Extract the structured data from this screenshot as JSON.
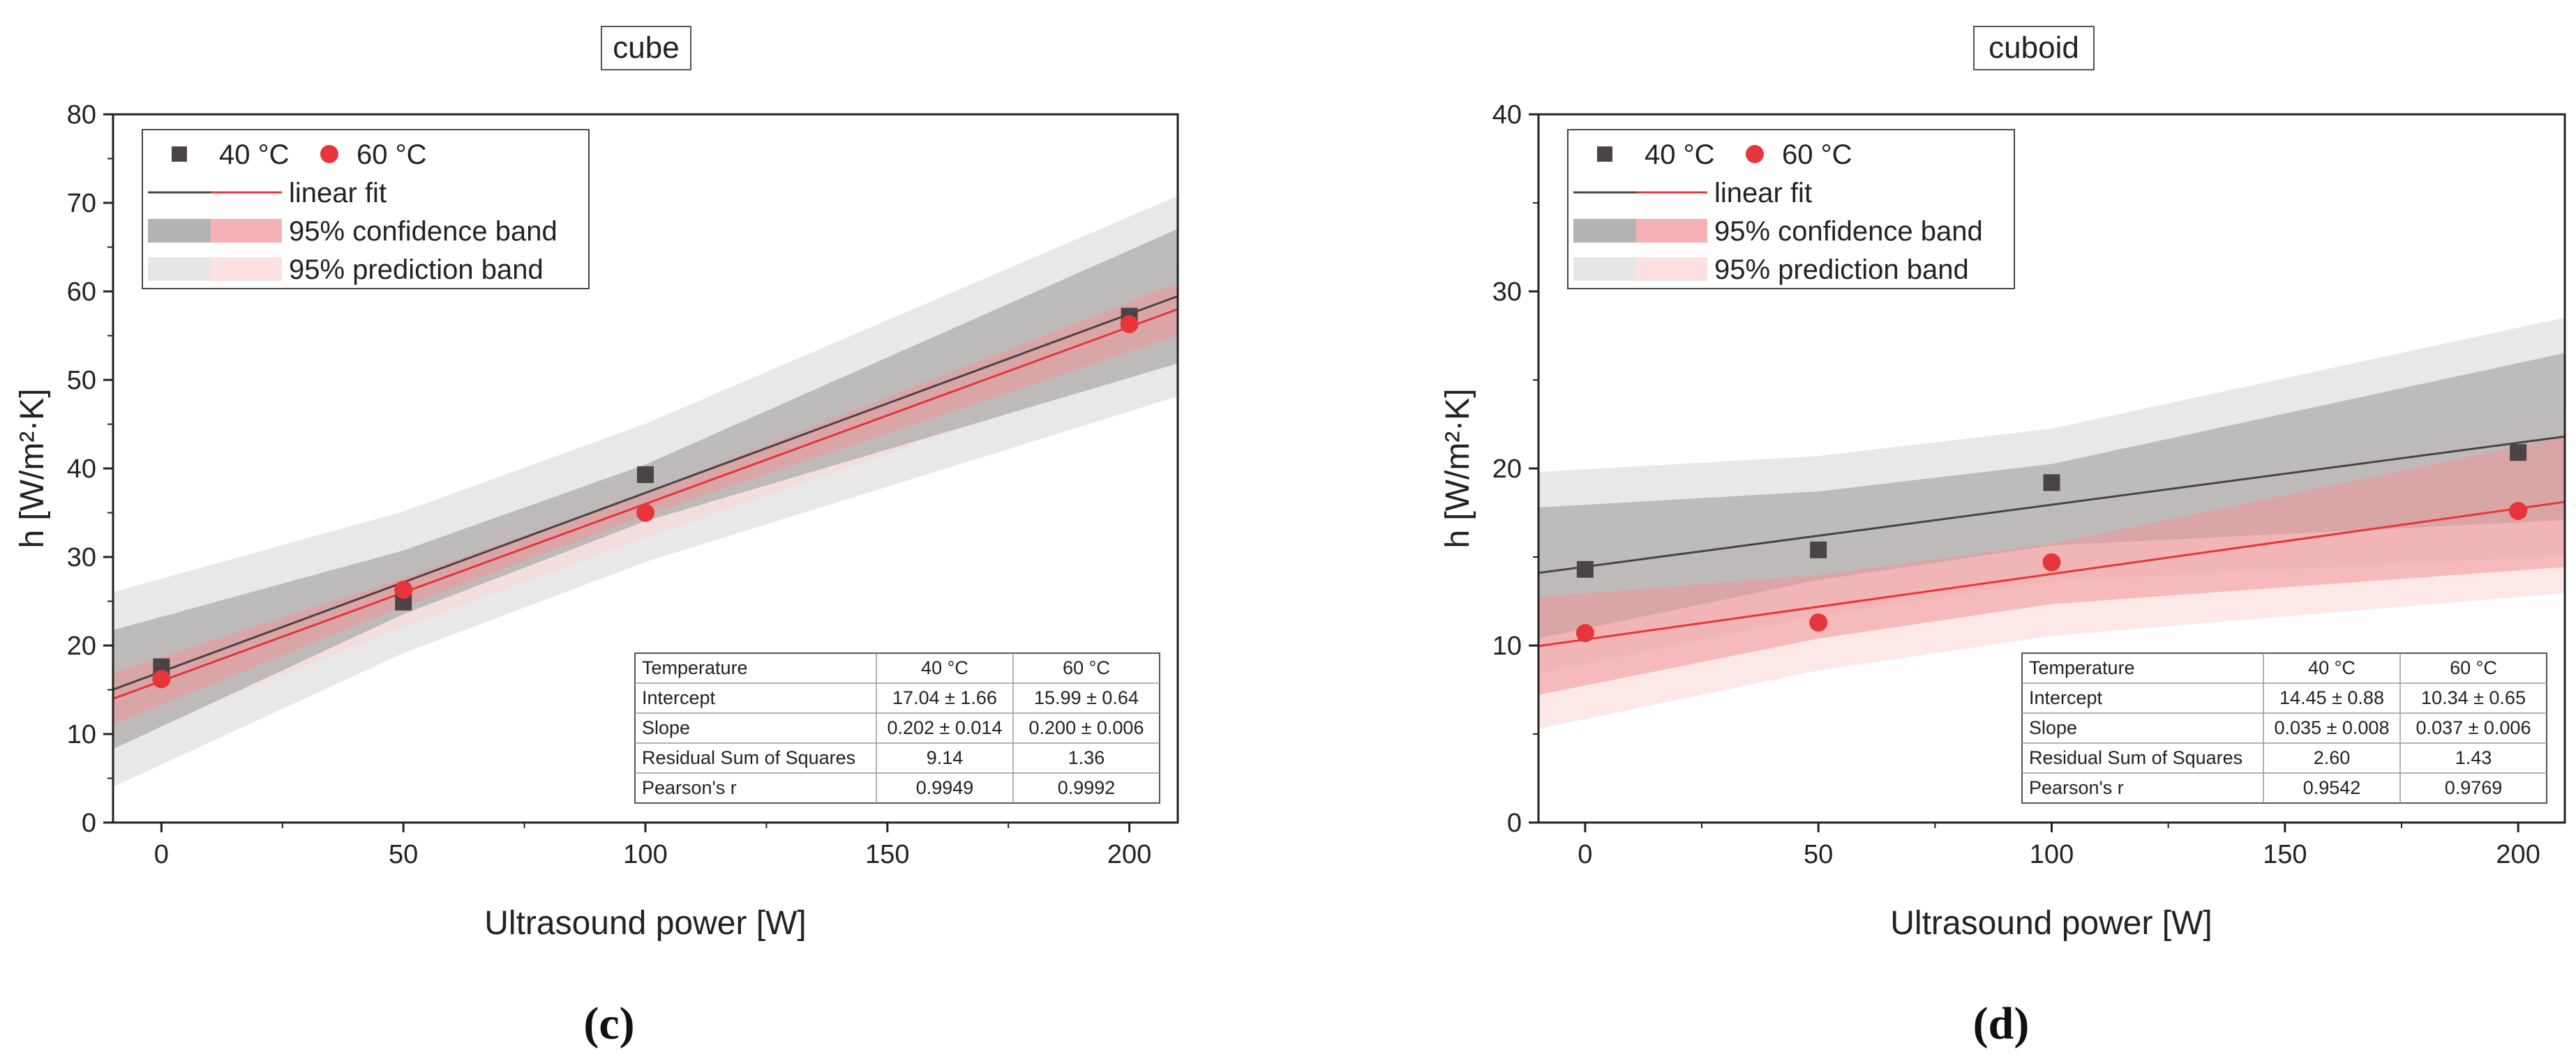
{
  "chart_data": [
    {
      "type": "scatter",
      "panel_letter": "(c)",
      "title": "cube",
      "xlabel": "Ultrasound power [W]",
      "ylabel": "h [W/m²·K]",
      "xlim": [
        -10,
        210
      ],
      "ylim": [
        0,
        80
      ],
      "xticks": [
        0,
        50,
        100,
        150,
        200
      ],
      "yticks": [
        0,
        10,
        20,
        30,
        40,
        50,
        60,
        70,
        80
      ],
      "legend": {
        "position": "top-left",
        "series_40": "40 °C",
        "series_60": "60 °C",
        "fit": "linear fit",
        "confidence": "95% confidence band",
        "prediction": "95% prediction band"
      },
      "series": [
        {
          "name": "40 °C",
          "color": "#4a4446",
          "marker": "square",
          "x": [
            0,
            50,
            100,
            200
          ],
          "y": [
            17.6,
            24.9,
            39.3,
            57.2
          ],
          "intercept": 17.04,
          "slope": 0.202,
          "conf_half": [
            6.2,
            3.6,
            3.2,
            7.2
          ],
          "pred_half": [
            10.5,
            8.0,
            7.8,
            11.0
          ]
        },
        {
          "name": "60 °C",
          "color": "#e8353b",
          "marker": "circle",
          "x": [
            0,
            50,
            100,
            200
          ],
          "y": [
            16.2,
            26.3,
            35.0,
            56.3
          ],
          "intercept": 15.99,
          "slope": 0.2,
          "conf_half": [
            2.7,
            1.6,
            1.3,
            2.8
          ],
          "pred_half": [
            4.8,
            3.9,
            3.8,
            4.9
          ]
        }
      ],
      "stats_table": {
        "header": [
          "Temperature",
          "40 °C",
          "60 °C"
        ],
        "rows": [
          [
            "Intercept",
            "17.04 ± 1.66",
            "15.99 ± 0.64"
          ],
          [
            "Slope",
            "0.202 ± 0.014",
            "0.200 ± 0.006"
          ],
          [
            "Residual Sum of Squares",
            "9.14",
            "1.36"
          ],
          [
            "Pearson's r",
            "0.9949",
            "0.9992"
          ]
        ]
      }
    },
    {
      "type": "scatter",
      "panel_letter": "(d)",
      "title": "cuboid",
      "xlabel": "Ultrasound power [W]",
      "ylabel": "h [W/m²·K]",
      "xlim": [
        -10,
        210
      ],
      "ylim": [
        0,
        40
      ],
      "xticks": [
        0,
        50,
        100,
        150,
        200
      ],
      "yticks": [
        0,
        10,
        20,
        30,
        40
      ],
      "legend": {
        "position": "top-left",
        "series_40": "40 °C",
        "series_60": "60 °C",
        "fit": "linear fit",
        "confidence": "95% confidence band",
        "prediction": "95% prediction band"
      },
      "series": [
        {
          "name": "40 °C",
          "color": "#4a4446",
          "marker": "square",
          "x": [
            0,
            50,
            100,
            200
          ],
          "y": [
            14.3,
            15.4,
            19.2,
            20.9
          ],
          "intercept": 14.45,
          "slope": 0.035,
          "conf_half": [
            3.5,
            2.5,
            2.3,
            4.5
          ],
          "pred_half": [
            5.5,
            4.5,
            4.3,
            6.5
          ]
        },
        {
          "name": "60 °C",
          "color": "#e8353b",
          "marker": "circle",
          "x": [
            0,
            50,
            100,
            200
          ],
          "y": [
            10.7,
            11.3,
            14.7,
            17.6
          ],
          "intercept": 10.34,
          "slope": 0.037,
          "conf_half": [
            2.6,
            1.8,
            1.7,
            3.5
          ],
          "pred_half": [
            4.5,
            3.6,
            3.5,
            5.0
          ]
        }
      ],
      "stats_table": {
        "header": [
          "Temperature",
          "40 °C",
          "60 °C"
        ],
        "rows": [
          [
            "Intercept",
            "14.45 ± 0.88",
            "10.34 ± 0.65"
          ],
          [
            "Slope",
            "0.035 ± 0.008",
            "0.037 ± 0.006"
          ],
          [
            "Residual Sum of Squares",
            "2.60",
            "1.43"
          ],
          [
            "Pearson's r",
            "0.9542",
            "0.9769"
          ]
        ]
      }
    }
  ]
}
